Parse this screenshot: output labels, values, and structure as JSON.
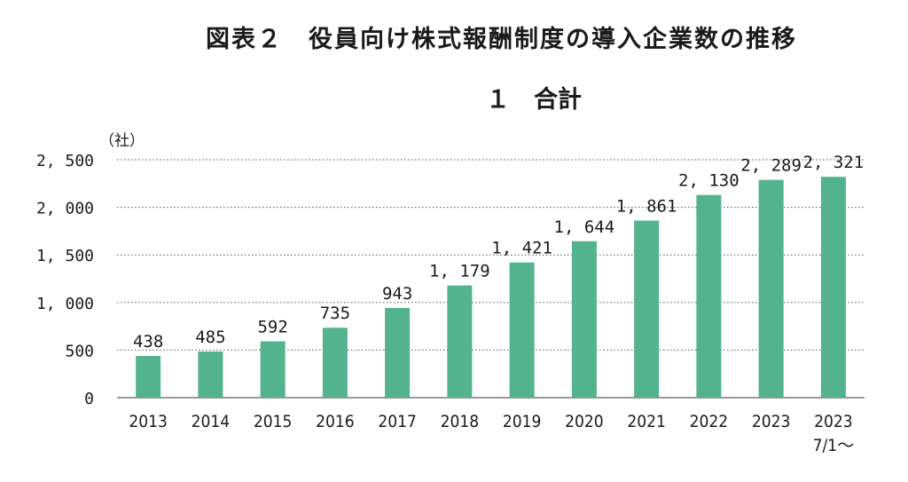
{
  "title": "図表２　役員向け株式報酬制度の導入企業数の推移",
  "subtitle": "１　合計",
  "chart_data": {
    "type": "bar",
    "title": "図表２　役員向け株式報酬制度の導入企業数の推移",
    "subtitle": "１　合計",
    "unit_label": "（社）",
    "categories": [
      "2013",
      "2014",
      "2015",
      "2016",
      "2017",
      "2018",
      "2019",
      "2020",
      "2021",
      "2022",
      "2023",
      "2023\n7/1～"
    ],
    "values": [
      438,
      485,
      592,
      735,
      943,
      1179,
      1421,
      1644,
      1861,
      2130,
      2289,
      2321
    ],
    "value_labels": [
      "438",
      "485",
      "592",
      "735",
      "943",
      "1, 179",
      "1, 421",
      "1, 644",
      "1, 861",
      "2, 130",
      "2, 289",
      "2, 321"
    ],
    "yticks": [
      0,
      500,
      1000,
      1500,
      2000,
      2500
    ],
    "ytick_labels": [
      "0",
      "500",
      "1, 000",
      "1, 500",
      "2, 000",
      "2, 500"
    ],
    "ylim": [
      0,
      2500
    ],
    "grid": "horizontal dotted",
    "bar_color": "#52b38c"
  }
}
